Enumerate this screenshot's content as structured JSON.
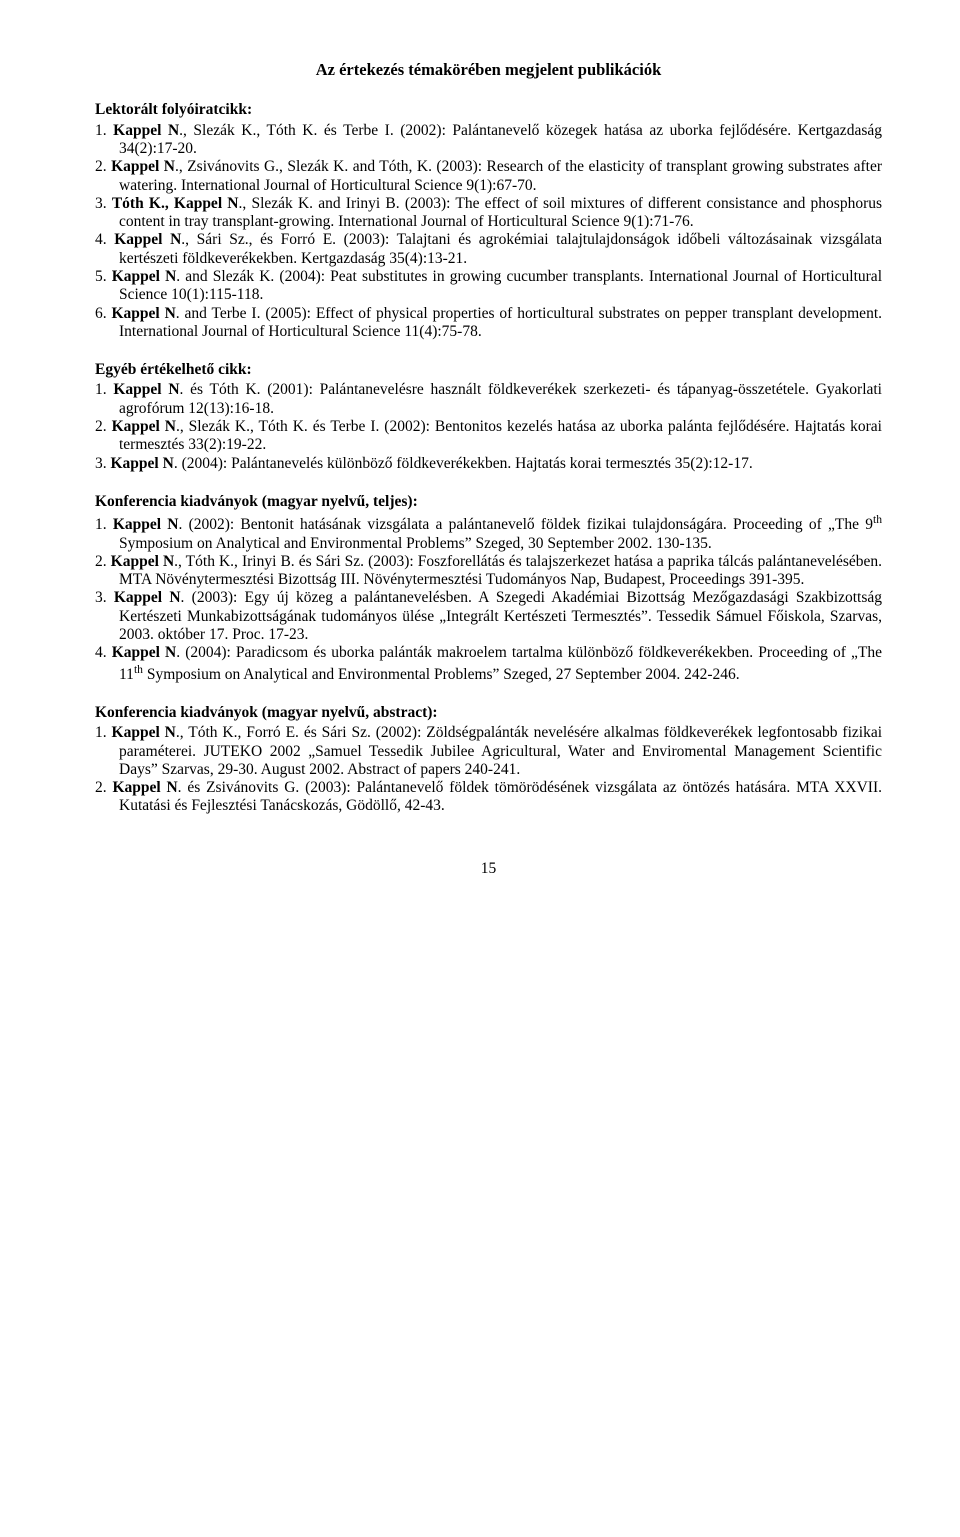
{
  "title": "Az értekezés témakörében megjelent publikációk",
  "sections": [
    {
      "heading": "Lektorált folyóiratcikk:",
      "items": [
        {
          "num": "1.",
          "author": "Kappel N",
          "rest": "., Slezák K., Tóth K. és Terbe I. (2002): Palántanevelő közegek hatása az uborka fejlődésére. Kertgazdaság 34(2):17-20."
        },
        {
          "num": "2.",
          "author": "Kappel N",
          "rest": "., Zsivánovits G., Slezák K. and Tóth, K. (2003): Research of the elasticity of transplant growing substrates after watering. International Journal of Horticultural Science 9(1):67-70."
        },
        {
          "num": "3.",
          "author": "Tóth K., Kappel N",
          "rest": "., Slezák K. and Irinyi B. (2003): The effect of soil mixtures of different consistance and phosphorus content in tray transplant-growing. International Journal of Horticultural Science 9(1):71-76."
        },
        {
          "num": "4.",
          "author": "Kappel N",
          "rest": "., Sári Sz., és Forró E. (2003): Talajtani és agrokémiai talajtulajdonságok időbeli változásainak vizsgálata kertészeti földkeverékekben. Kertgazdaság 35(4):13-21."
        },
        {
          "num": "5.",
          "author": "Kappel N",
          "rest": ". and Slezák K. (2004): Peat substitutes in growing cucumber transplants. International Journal of Horticultural Science 10(1):115-118."
        },
        {
          "num": "6.",
          "author": "Kappel N",
          "rest": ". and Terbe I. (2005): Effect of physical properties of horticultural substrates on pepper transplant development. International Journal of Horticultural Science 11(4):75-78."
        }
      ]
    },
    {
      "heading": "Egyéb értékelhető cikk:",
      "heading_suffix": "",
      "items": [
        {
          "num": "1.",
          "author": "Kappel N",
          "rest": ". és Tóth K. (2001): Palántanevelésre használt földkeverékek szerkezeti- és tápanyag-összetétele. Gyakorlati agrofórum 12(13):16-18."
        },
        {
          "num": "2.",
          "author": "Kappel N",
          "rest": "., Slezák K., Tóth K. és Terbe I. (2002): Bentonitos kezelés hatása az uborka palánta fejlődésére. Hajtatás korai termesztés 33(2):19-22."
        },
        {
          "num": "3.",
          "author": "Kappel N",
          "rest": ". (2004): Palántanevelés különböző földkeverékekben. Hajtatás korai termesztés 35(2):12-17."
        }
      ]
    },
    {
      "heading": "Konferencia kiadványok (magyar nyelvű, teljes):",
      "items": [
        {
          "num": "1.",
          "author": "Kappel N",
          "rest": ". (2002): Bentonit hatásának vizsgálata a palántanevelő földek fizikai tulajdonságára. Proceeding of „The 9",
          "sup": "th",
          "rest2": " Symposium on Analytical and Environmental Problems” Szeged, 30 September 2002. 130-135."
        },
        {
          "num": "2.",
          "author": "Kappel N",
          "rest": "., Tóth K., Irinyi B. és Sári Sz. (2003): Foszforellátás és talajszerkezet hatása a paprika tálcás palántanevelésében. MTA Növénytermesztési Bizottság III. Növénytermesztési Tudományos Nap, Budapest, Proceedings 391-395."
        },
        {
          "num": "3.",
          "author": "Kappel N",
          "rest": ". (2003): Egy új közeg a palántanevelésben. A Szegedi Akadémiai Bizottság Mezőgazdasági Szakbizottság Kertészeti Munkabizottságának tudományos ülése „Integrált Kertészeti Termesztés”. Tessedik Sámuel Főiskola, Szarvas, 2003. október 17. Proc. 17-23."
        },
        {
          "num": "4.",
          "author": "Kappel N",
          "rest": ". (2004): Paradicsom és uborka palánták makroelem tartalma különböző földkeverékekben. Proceeding of „The 11",
          "sup": "th",
          "rest2": " Symposium on Analytical and Environmental Problems” Szeged, 27 September 2004. 242-246."
        }
      ]
    },
    {
      "heading": "Konferencia kiadványok (magyar nyelvű, abstract):",
      "items": [
        {
          "num": "1.",
          "author": "Kappel N",
          "rest": "., Tóth K., Forró E. és Sári Sz. (2002): Zöldségpalánták nevelésére alkalmas földkeverékek legfontosabb fizikai paraméterei. JUTEKO 2002 „Samuel Tessedik Jubilee Agricultural, Water and Enviromental Management Scientific Days” Szarvas, 29-30. August 2002. Abstract of papers 240-241."
        },
        {
          "num": "2.",
          "author": "Kappel N",
          "rest": ". és Zsivánovits G. (2003): Palántanevelő földek tömörödésének vizsgálata az öntözés hatására. MTA XXVII. Kutatási és Fejlesztési Tanácskozás, Gödöllő, 42-43."
        }
      ]
    }
  ],
  "page_number": "15"
}
